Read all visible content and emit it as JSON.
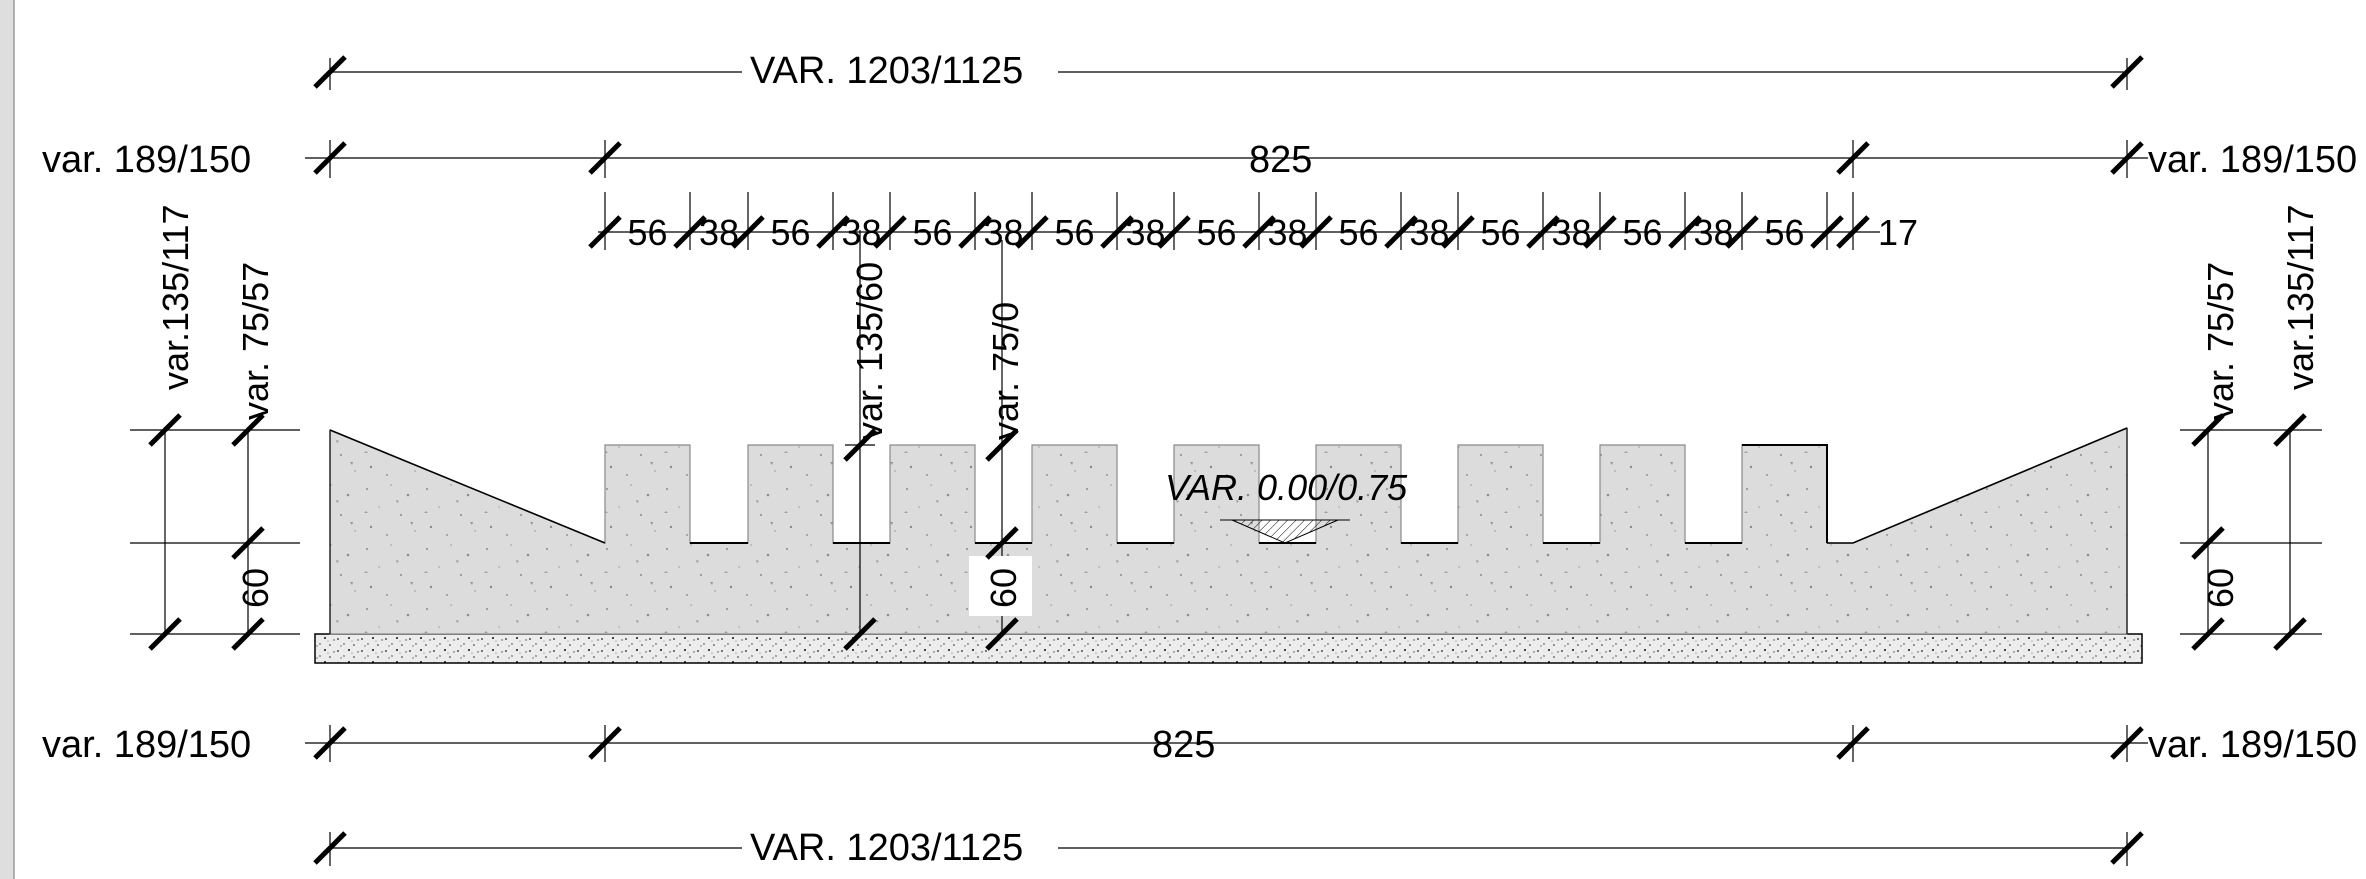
{
  "dimensions": {
    "top_overall": "VAR. 1203/1125",
    "top_left": "var. 189/150",
    "top_mid": "825",
    "top_right": "var. 189/150",
    "bottom_left": "var. 189/150",
    "bottom_mid": "825",
    "bottom_right": "var. 189/150",
    "bottom_overall": "VAR. 1203/1125",
    "left_outer": "var.135/117",
    "left_inner": "var. 75/57",
    "left_base": "60",
    "right_outer": "var.135/117",
    "right_inner": "var. 75/57",
    "right_base": "60",
    "mid_a": "var. 135/60",
    "mid_b": "var. 75/0",
    "mid_base": "60",
    "level": "VAR. 0.00/0.75"
  },
  "segments": [
    "56",
    "38",
    "56",
    "38",
    "56",
    "38",
    "56",
    "38",
    "56",
    "38",
    "56",
    "38",
    "56",
    "38",
    "56",
    "38",
    "56",
    "17"
  ],
  "colors": {
    "concrete": "#dcdcdc",
    "base": "#e8e8e8",
    "line": "#000000"
  }
}
